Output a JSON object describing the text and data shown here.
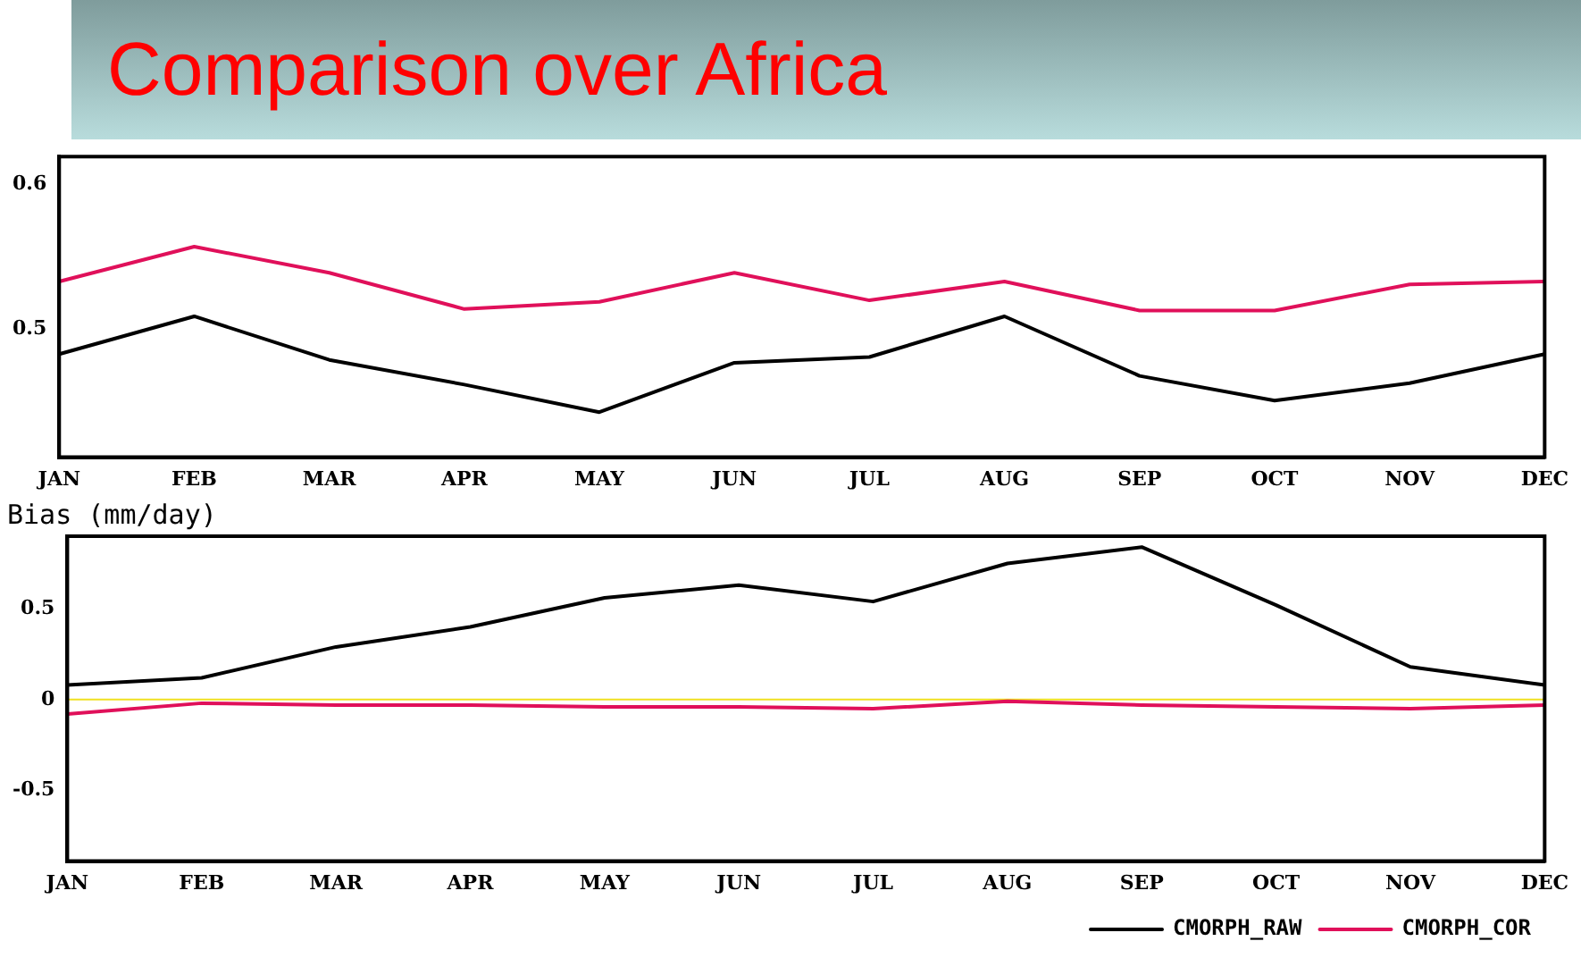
{
  "chart_data": [
    {
      "type": "line",
      "title": "Comparison over Africa",
      "categories": [
        "JAN",
        "FEB",
        "MAR",
        "APR",
        "MAY",
        "JUN",
        "JUL",
        "AUG",
        "SEP",
        "OCT",
        "NOV",
        "DEC"
      ],
      "series": [
        {
          "color": "#000000",
          "values": [
            0.483,
            0.509,
            0.479,
            0.462,
            0.443,
            0.477,
            0.481,
            0.509,
            0.468,
            0.451,
            0.463,
            0.483
          ]
        },
        {
          "color": "#e0105a",
          "values": [
            0.533,
            0.557,
            0.539,
            0.514,
            0.519,
            0.539,
            0.52,
            0.533,
            0.513,
            0.513,
            0.531,
            0.533
          ]
        }
      ],
      "ylim": [
        0.412,
        0.619
      ],
      "yticks": [
        0.5,
        0.6
      ],
      "grid": false,
      "legend": false,
      "marker": "none",
      "line_style": "solid"
    },
    {
      "type": "line",
      "ylabel": "Bias (mm/day)",
      "categories": [
        "JAN",
        "FEB",
        "MAR",
        "APR",
        "MAY",
        "JUN",
        "JUL",
        "AUG",
        "SEP",
        "OCT",
        "NOV",
        "DEC"
      ],
      "series": [
        {
          "name": "CMORPH_RAW",
          "color": "#000000",
          "values": [
            0.08,
            0.12,
            0.29,
            0.4,
            0.56,
            0.63,
            0.54,
            0.75,
            0.84,
            0.52,
            0.18,
            0.08
          ]
        },
        {
          "name": "CMORPH_COR",
          "color": "#e0105a",
          "values": [
            -0.08,
            -0.02,
            -0.03,
            -0.03,
            -0.04,
            -0.04,
            -0.05,
            -0.01,
            -0.03,
            -0.04,
            -0.05,
            -0.03
          ]
        }
      ],
      "ylim": [
        -0.89,
        0.9
      ],
      "yticks": [
        -0.5,
        0,
        0.5
      ],
      "ref_lines": [
        {
          "axis": "y",
          "value": 0,
          "color": "#f0e020"
        }
      ],
      "grid": false,
      "legend": "bottom right",
      "marker": "none",
      "line_style": "solid"
    }
  ]
}
